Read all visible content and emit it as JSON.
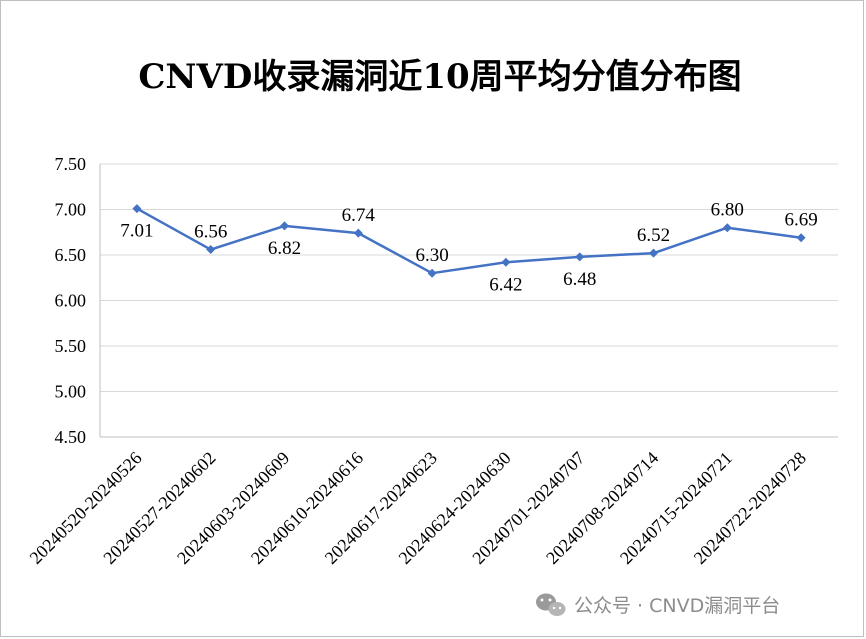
{
  "chart_data": {
    "type": "line",
    "title": "CNVD收录漏洞近10周平均分值分布图",
    "categories": [
      "20240520-20240526",
      "20240527-20240602",
      "20240603-20240609",
      "20240610-20240616",
      "20240617-20240623",
      "20240624-20240630",
      "20240701-20240707",
      "20240708-20240714",
      "20240715-20240721",
      "20240722-20240728"
    ],
    "values": [
      7.01,
      6.56,
      6.82,
      6.74,
      6.3,
      6.42,
      6.48,
      6.52,
      6.8,
      6.69
    ],
    "data_labels": [
      "7.01",
      "6.56",
      "6.82",
      "6.74",
      "6.30",
      "6.42",
      "6.48",
      "6.52",
      "6.80",
      "6.69"
    ],
    "y_ticks": [
      "4.50",
      "5.00",
      "5.50",
      "6.00",
      "6.50",
      "7.00",
      "7.50"
    ],
    "ylim": [
      4.5,
      7.5
    ],
    "grid": true,
    "legend": "none",
    "color": "#4472c4"
  },
  "watermark": {
    "text": "公众号 · CNVD漏洞平台",
    "icon": "wechat-icon"
  }
}
